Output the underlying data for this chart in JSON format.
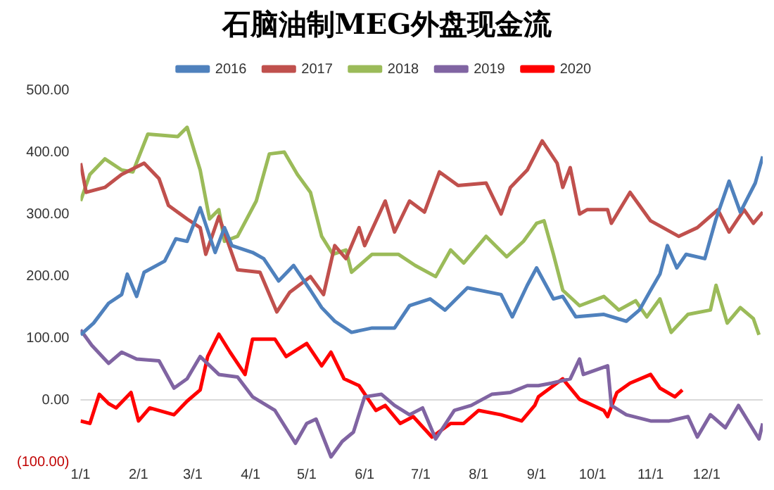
{
  "chart_data": {
    "type": "line",
    "title": "石脑油制MEG外盘现金流",
    "legend": "top",
    "grid": false,
    "marker": "none",
    "line_style": "solid",
    "xlim": [
      "--01-01",
      "--12-31"
    ],
    "xticks": [
      {
        "value": "--01-01",
        "label": "1/1"
      },
      {
        "value": "--02-01",
        "label": "2/1"
      },
      {
        "value": "--03-01",
        "label": "3/1"
      },
      {
        "value": "--04-01",
        "label": "4/1"
      },
      {
        "value": "--05-01",
        "label": "5/1"
      },
      {
        "value": "--06-01",
        "label": "6/1"
      },
      {
        "value": "--07-01",
        "label": "7/1"
      },
      {
        "value": "--08-01",
        "label": "8/1"
      },
      {
        "value": "--09-01",
        "label": "9/1"
      },
      {
        "value": "--10-01",
        "label": "10/1"
      },
      {
        "value": "--11-01",
        "label": "11/1"
      },
      {
        "value": "--12-01",
        "label": "12/1"
      }
    ],
    "ylim": [
      -100,
      500
    ],
    "yticks": [
      {
        "value": -100,
        "label": "(100.00)"
      },
      {
        "value": 0,
        "label": "0.00"
      },
      {
        "value": 100,
        "label": "100.00"
      },
      {
        "value": 200,
        "label": "200.00"
      },
      {
        "value": 300,
        "label": "300.00"
      },
      {
        "value": 400,
        "label": "400.00"
      },
      {
        "value": 500,
        "label": "500.00"
      }
    ],
    "ref_lines": [
      {
        "axis": "y",
        "value": 0,
        "color": "#d9d9d9"
      }
    ],
    "series": [
      {
        "name": "2016",
        "color": "#4f81bd",
        "x": [
          "--01-01",
          "--01-08",
          "--01-16",
          "--01-23",
          "--01-26",
          "--01-31",
          "--02-04",
          "--02-15",
          "--02-21",
          "--02-27",
          "--03-05",
          "--03-13",
          "--03-18",
          "--03-22",
          "--04-02",
          "--04-08",
          "--04-16",
          "--04-24",
          "--05-03",
          "--05-09",
          "--05-16",
          "--05-25",
          "--06-05",
          "--06-17",
          "--06-25",
          "--07-06",
          "--07-14",
          "--07-26",
          "--08-13",
          "--08-19",
          "--08-27",
          "--09-01",
          "--09-10",
          "--09-15",
          "--09-22",
          "--10-07",
          "--10-19",
          "--10-26",
          "--11-01",
          "--11-06",
          "--11-10",
          "--11-15",
          "--11-20",
          "--11-30",
          "--12-06",
          "--12-13",
          "--12-19",
          "--12-27",
          "--12-31"
        ],
        "values": [
          105,
          124,
          156,
          170,
          203,
          167,
          206,
          224,
          260,
          256,
          310,
          238,
          278,
          249,
          238,
          228,
          192,
          217,
          177,
          149,
          127,
          109,
          116,
          116,
          152,
          163,
          145,
          181,
          170,
          134,
          185,
          213,
          163,
          167,
          134,
          138,
          127,
          145,
          177,
          203,
          249,
          213,
          235,
          228,
          292,
          353,
          303,
          350,
          393
        ]
      },
      {
        "name": "2017",
        "color": "#c0504d",
        "x": [
          "--01-01",
          "--01-04",
          "--01-14",
          "--01-23",
          "--02-04",
          "--02-12",
          "--02-17",
          "--02-27",
          "--03-05",
          "--03-08",
          "--03-15",
          "--03-25",
          "--04-06",
          "--04-15",
          "--04-22",
          "--05-03",
          "--05-10",
          "--05-16",
          "--05-22",
          "--05-29",
          "--06-01",
          "--06-12",
          "--06-17",
          "--06-25",
          "--07-03",
          "--07-11",
          "--07-21",
          "--08-05",
          "--08-13",
          "--08-18",
          "--08-27",
          "--09-04",
          "--09-12",
          "--09-15",
          "--09-19",
          "--09-24",
          "--09-28",
          "--10-09",
          "--10-11",
          "--10-21",
          "--11-01",
          "--11-16",
          "--11-26",
          "--12-07",
          "--12-13",
          "--12-21",
          "--12-26",
          "--12-31"
        ],
        "values": [
          382,
          335,
          343,
          364,
          382,
          357,
          314,
          292,
          278,
          235,
          296,
          210,
          206,
          142,
          174,
          199,
          170,
          249,
          228,
          278,
          249,
          321,
          271,
          321,
          303,
          368,
          346,
          350,
          300,
          343,
          371,
          418,
          382,
          343,
          375,
          300,
          307,
          307,
          285,
          335,
          289,
          264,
          278,
          307,
          271,
          307,
          285,
          303
        ]
      },
      {
        "name": "2018",
        "color": "#9bbb59",
        "x": [
          "--01-01",
          "--01-06",
          "--01-14",
          "--01-23",
          "--01-29",
          "--02-06",
          "--02-22",
          "--02-27",
          "--03-05",
          "--03-10",
          "--03-15",
          "--03-18",
          "--03-25",
          "--04-04",
          "--04-11",
          "--04-19",
          "--04-26",
          "--05-03",
          "--05-09",
          "--05-15",
          "--05-22",
          "--05-25",
          "--06-05",
          "--06-19",
          "--06-28",
          "--07-09",
          "--07-17",
          "--07-24",
          "--08-05",
          "--08-16",
          "--08-25",
          "--09-01",
          "--09-05",
          "--09-10",
          "--09-15",
          "--09-24",
          "--10-07",
          "--10-15",
          "--10-24",
          "--10-30",
          "--11-06",
          "--11-12",
          "--11-21",
          "--12-03",
          "--12-06",
          "--12-12",
          "--12-19",
          "--12-26",
          "--12-29"
        ],
        "values": [
          321,
          364,
          389,
          371,
          368,
          429,
          425,
          440,
          371,
          292,
          307,
          256,
          264,
          321,
          397,
          400,
          364,
          335,
          264,
          235,
          242,
          206,
          235,
          235,
          217,
          199,
          242,
          221,
          264,
          231,
          256,
          285,
          289,
          235,
          177,
          152,
          167,
          145,
          160,
          134,
          163,
          109,
          138,
          145,
          185,
          124,
          149,
          131,
          105
        ]
      },
      {
        "name": "2019",
        "color": "#8064a2",
        "x": [
          "--01-01",
          "--01-07",
          "--01-16",
          "--01-23",
          "--01-31",
          "--02-12",
          "--02-20",
          "--02-27",
          "--03-05",
          "--03-15",
          "--03-25",
          "--04-02",
          "--04-14",
          "--04-25",
          "--05-01",
          "--05-06",
          "--05-14",
          "--05-20",
          "--05-26",
          "--06-01",
          "--06-10",
          "--06-17",
          "--06-25",
          "--07-02",
          "--07-09",
          "--07-19",
          "--07-28",
          "--08-08",
          "--08-18",
          "--08-27",
          "--09-02",
          "--09-09",
          "--09-19",
          "--09-24",
          "--09-26",
          "--10-09",
          "--10-11",
          "--10-19",
          "--11-01",
          "--11-11",
          "--11-21",
          "--11-26",
          "--12-03",
          "--12-11",
          "--12-18",
          "--12-29",
          "--12-31"
        ],
        "values": [
          113,
          88,
          59,
          77,
          66,
          63,
          19,
          34,
          70,
          41,
          37,
          5,
          -17,
          -70,
          -38,
          -31,
          -92,
          -67,
          -52,
          5,
          9,
          -9,
          -24,
          -13,
          -63,
          -17,
          -9,
          9,
          12,
          23,
          23,
          27,
          34,
          66,
          41,
          55,
          -9,
          -24,
          -34,
          -34,
          -27,
          -60,
          -24,
          -45,
          -9,
          -63,
          -38
        ]
      },
      {
        "name": "2020",
        "color": "#ff0000",
        "x": [
          "--01-01",
          "--01-06",
          "--01-11",
          "--01-16",
          "--01-20",
          "--01-28",
          "--02-01",
          "--02-07",
          "--02-20",
          "--02-27",
          "--03-05",
          "--03-09",
          "--03-15",
          "--03-21",
          "--03-29",
          "--04-02",
          "--04-14",
          "--04-20",
          "--05-01",
          "--05-09",
          "--05-14",
          "--05-21",
          "--05-29",
          "--06-07",
          "--06-12",
          "--06-20",
          "--06-27",
          "--07-07",
          "--07-17",
          "--07-24",
          "--08-01",
          "--08-13",
          "--08-24",
          "--08-31",
          "--09-02",
          "--09-15",
          "--09-24",
          "--10-07",
          "--10-09",
          "--10-14",
          "--10-21",
          "--11-01",
          "--11-06",
          "--11-14",
          "--11-18"
        ],
        "values": [
          -34,
          -38,
          9,
          -6,
          -13,
          12,
          -34,
          -13,
          -24,
          -2,
          16,
          70,
          106,
          77,
          41,
          98,
          98,
          70,
          91,
          55,
          77,
          34,
          23,
          -17,
          -9,
          -38,
          -27,
          -60,
          -38,
          -38,
          -17,
          -24,
          -34,
          -9,
          5,
          34,
          1,
          -17,
          -27,
          12,
          27,
          41,
          19,
          5,
          16
        ]
      }
    ]
  }
}
